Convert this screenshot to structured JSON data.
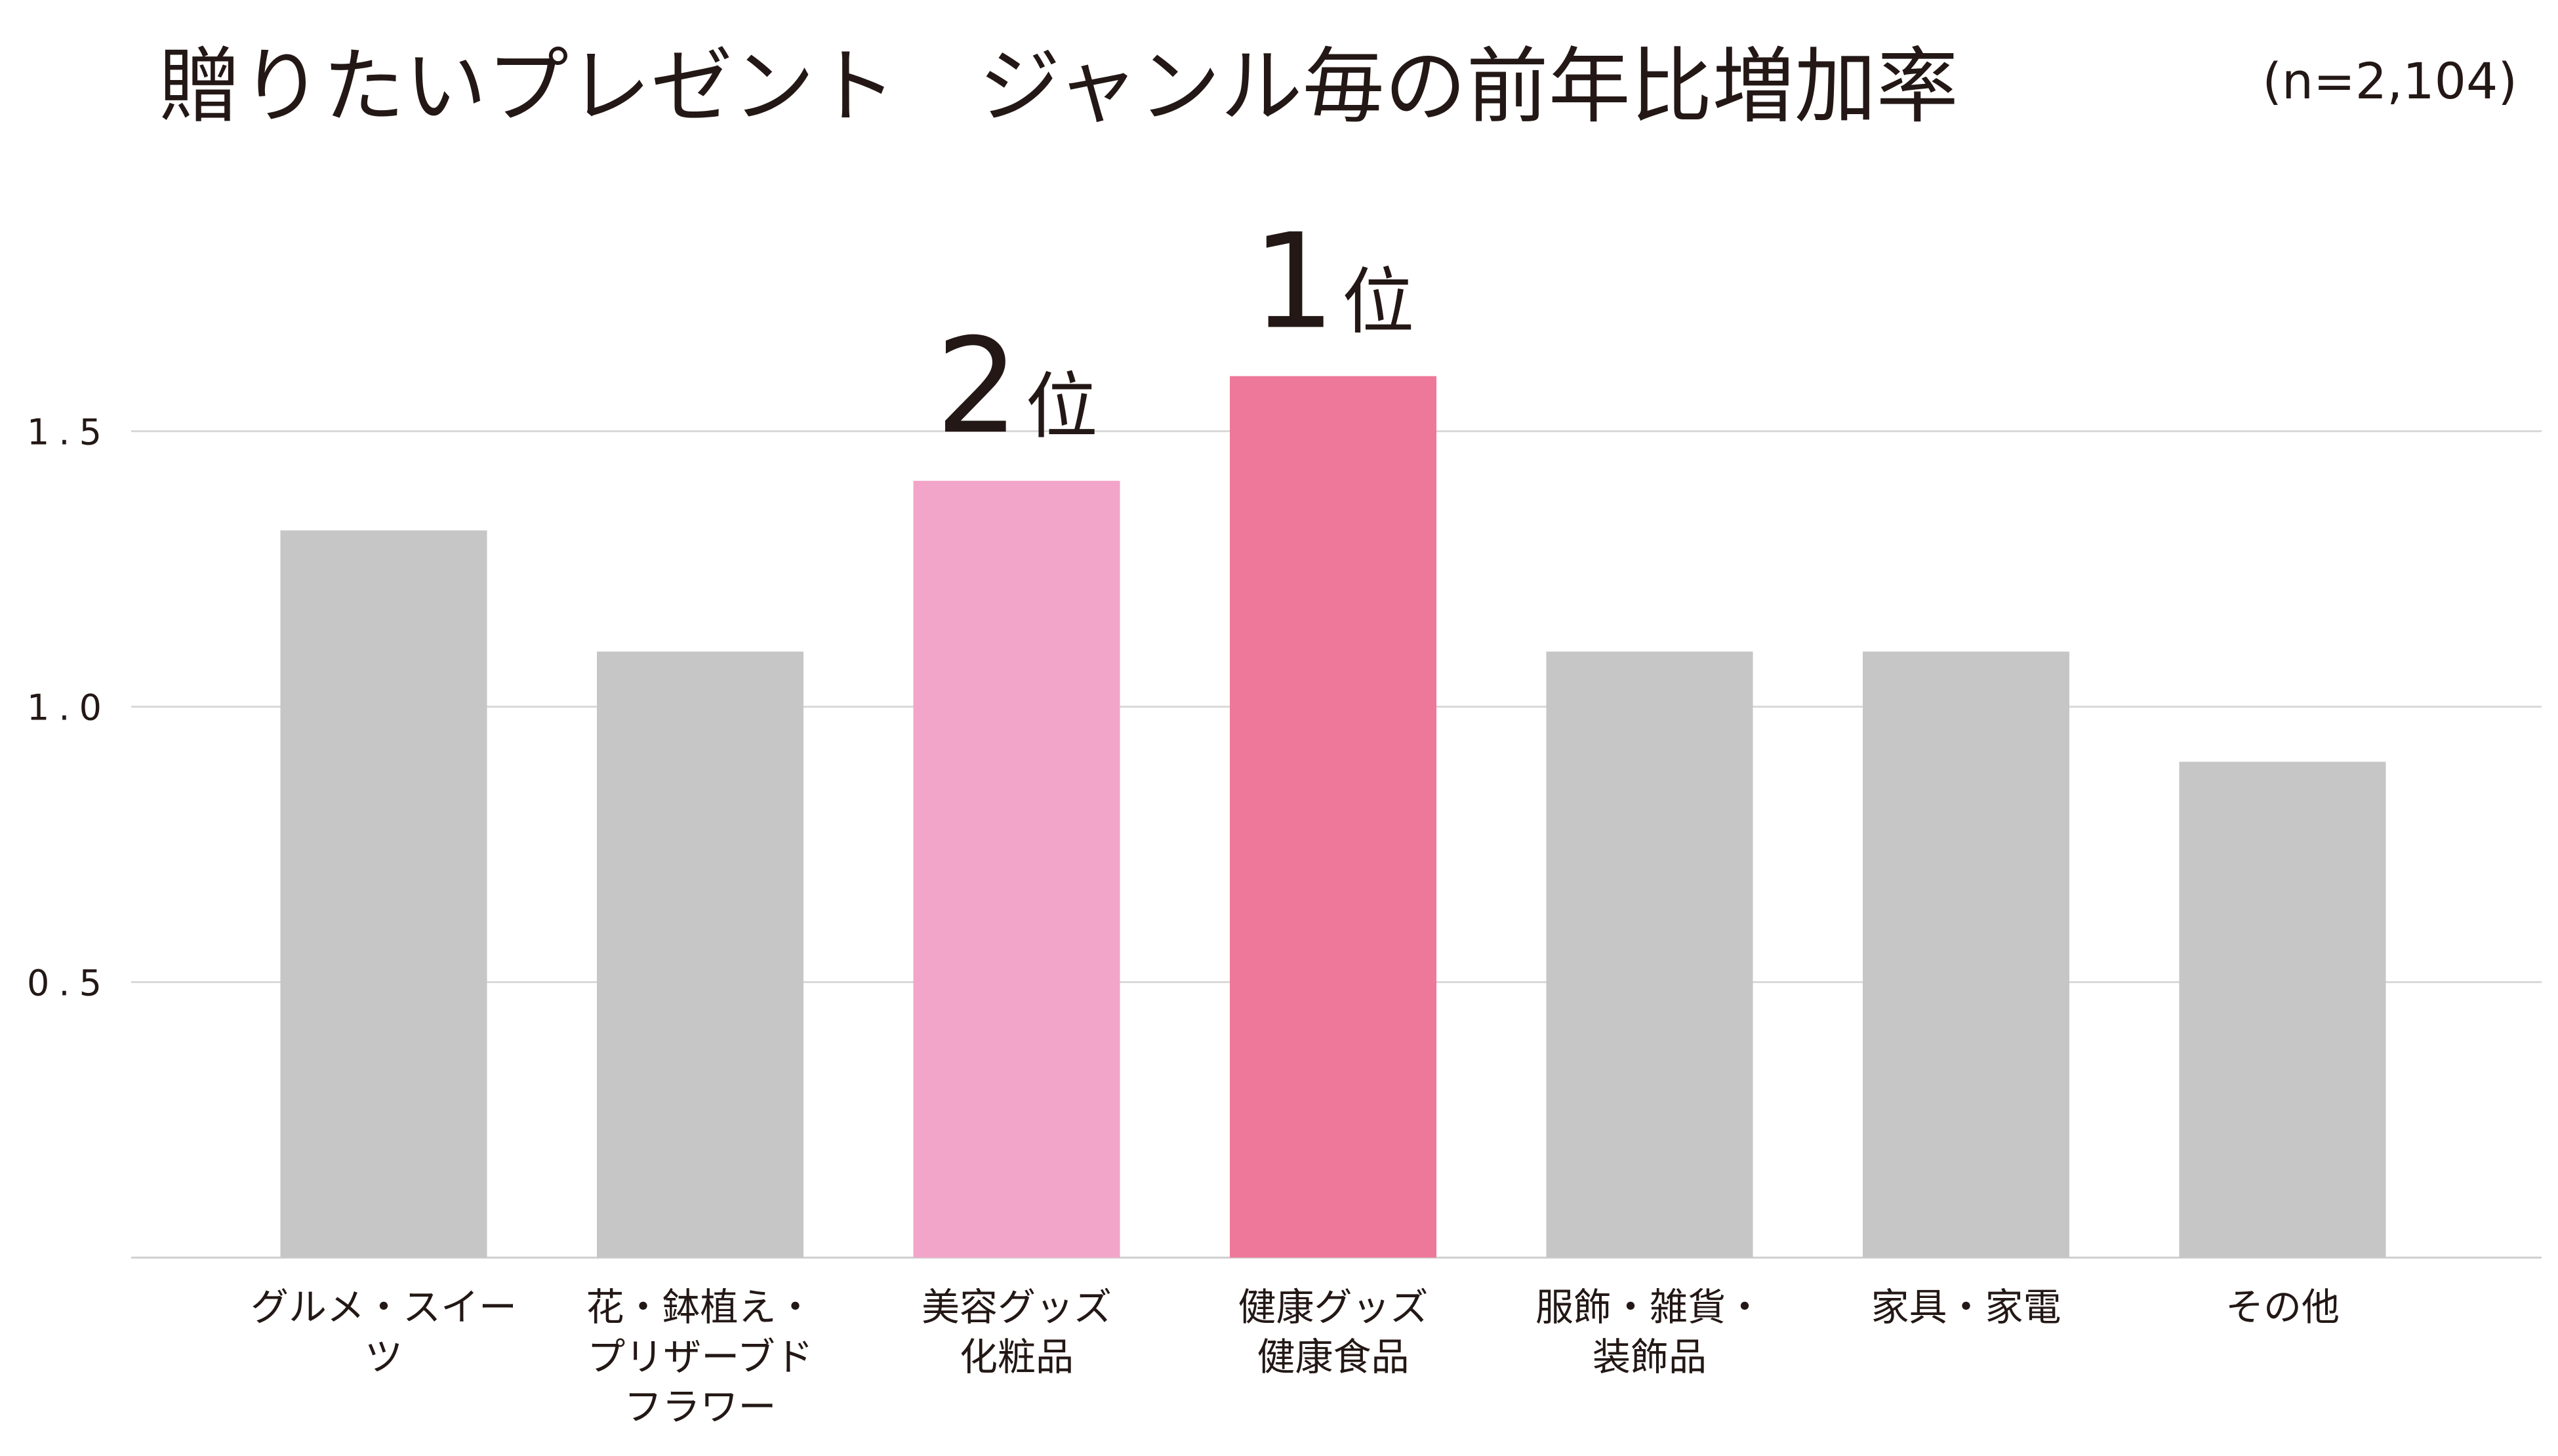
{
  "chart_data": {
    "type": "bar",
    "title": "贈りたいプレゼント　ジャンル毎の前年比増加率",
    "subtitle": "(n=2,104)",
    "categories": [
      "グルメ・スイーツ",
      "花・鉢植え・\nプリザーブド\nフラワー",
      "美容グッズ\n化粧品",
      "健康グッズ\n健康食品",
      "服飾・雑貨・\n装飾品",
      "家具・家電",
      "その他"
    ],
    "values": [
      1.32,
      1.1,
      1.41,
      1.6,
      1.1,
      1.1,
      0.9
    ],
    "colors": [
      "#c6c6c6",
      "#c6c6c6",
      "#f2a5c8",
      "#ee7899",
      "#c6c6c6",
      "#c6c6c6",
      "#c6c6c6"
    ],
    "rank_labels": [
      null,
      null,
      "2",
      "1",
      null,
      null,
      null
    ],
    "rank_suffix": "位",
    "ylim": [
      0,
      2
    ],
    "yticks": [
      0.5,
      {
        "value": 1,
        "label": "1.0"
      },
      1.5
    ],
    "grid": true
  }
}
